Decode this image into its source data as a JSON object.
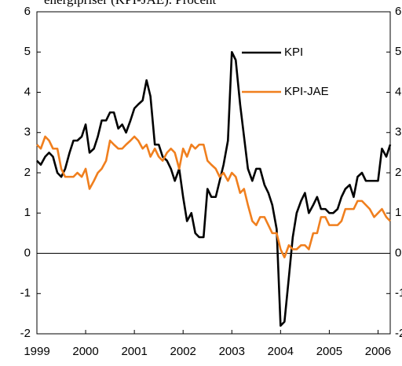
{
  "chart_data": {
    "type": "line",
    "title": "energipriser (KPI-JAE). Procent",
    "x": [
      1999.0,
      1999.08,
      1999.17,
      1999.25,
      1999.33,
      1999.42,
      1999.5,
      1999.58,
      1999.67,
      1999.75,
      1999.83,
      1999.92,
      2000.0,
      2000.08,
      2000.17,
      2000.25,
      2000.33,
      2000.42,
      2000.5,
      2000.58,
      2000.67,
      2000.75,
      2000.83,
      2000.92,
      2001.0,
      2001.08,
      2001.17,
      2001.25,
      2001.33,
      2001.42,
      2001.5,
      2001.58,
      2001.67,
      2001.75,
      2001.83,
      2001.92,
      2002.0,
      2002.08,
      2002.17,
      2002.25,
      2002.33,
      2002.42,
      2002.5,
      2002.58,
      2002.67,
      2002.75,
      2002.83,
      2002.92,
      2003.0,
      2003.08,
      2003.17,
      2003.25,
      2003.33,
      2003.42,
      2003.5,
      2003.58,
      2003.67,
      2003.75,
      2003.83,
      2003.92,
      2004.0,
      2004.08,
      2004.17,
      2004.25,
      2004.33,
      2004.42,
      2004.5,
      2004.58,
      2004.67,
      2004.75,
      2004.83,
      2004.92,
      2005.0,
      2005.08,
      2005.17,
      2005.25,
      2005.33,
      2005.42,
      2005.5,
      2005.58,
      2005.67,
      2005.75,
      2005.83,
      2005.92,
      2006.0,
      2006.08,
      2006.17,
      2006.25
    ],
    "series": [
      {
        "name": "KPI",
        "color": "#000000",
        "values": [
          2.3,
          2.2,
          2.4,
          2.5,
          2.4,
          2.0,
          1.9,
          2.1,
          2.5,
          2.8,
          2.8,
          2.9,
          3.2,
          2.5,
          2.6,
          2.9,
          3.3,
          3.3,
          3.5,
          3.5,
          3.1,
          3.2,
          3.0,
          3.3,
          3.6,
          3.7,
          3.8,
          4.3,
          3.9,
          2.7,
          2.7,
          2.4,
          2.3,
          2.1,
          1.8,
          2.1,
          1.4,
          0.8,
          1.0,
          0.5,
          0.4,
          0.4,
          1.6,
          1.4,
          1.4,
          1.8,
          2.2,
          2.8,
          5.0,
          4.8,
          3.7,
          2.9,
          2.1,
          1.8,
          2.1,
          2.1,
          1.7,
          1.5,
          1.2,
          0.6,
          -1.8,
          -1.7,
          -0.6,
          0.4,
          1.0,
          1.3,
          1.5,
          1.0,
          1.2,
          1.4,
          1.1,
          1.1,
          1.0,
          1.0,
          1.1,
          1.4,
          1.6,
          1.7,
          1.4,
          1.9,
          2.0,
          1.8,
          1.8,
          1.8,
          1.8,
          2.6,
          2.4,
          2.7
        ]
      },
      {
        "name": "KPI-JAE",
        "color": "#f07f1e",
        "values": [
          2.7,
          2.6,
          2.9,
          2.8,
          2.6,
          2.6,
          2.1,
          1.9,
          1.9,
          1.9,
          2.0,
          1.9,
          2.1,
          1.6,
          1.8,
          2.0,
          2.1,
          2.3,
          2.8,
          2.7,
          2.6,
          2.6,
          2.7,
          2.8,
          2.9,
          2.8,
          2.6,
          2.7,
          2.4,
          2.6,
          2.4,
          2.3,
          2.5,
          2.6,
          2.5,
          2.1,
          2.6,
          2.4,
          2.7,
          2.6,
          2.7,
          2.7,
          2.3,
          2.2,
          2.1,
          1.9,
          2.0,
          1.8,
          2.0,
          1.9,
          1.5,
          1.6,
          1.2,
          0.8,
          0.7,
          0.9,
          0.9,
          0.7,
          0.5,
          0.5,
          0.1,
          -0.1,
          0.2,
          0.1,
          0.1,
          0.2,
          0.2,
          0.1,
          0.5,
          0.5,
          0.9,
          0.9,
          0.7,
          0.7,
          0.7,
          0.8,
          1.1,
          1.1,
          1.1,
          1.3,
          1.3,
          1.2,
          1.1,
          0.9,
          1.0,
          1.1,
          0.9,
          0.8
        ]
      }
    ],
    "xlim": [
      1999,
      2006.25
    ],
    "xticks": [
      1999,
      2000,
      2001,
      2002,
      2003,
      2004,
      2005,
      2006
    ],
    "ylim": [
      -2,
      6
    ],
    "yticks": [
      -2,
      -1,
      0,
      1,
      2,
      3,
      4,
      5,
      6
    ],
    "y2lim": [
      -2,
      6
    ],
    "y2ticks": [
      -2,
      -1,
      0,
      1,
      2,
      3,
      4,
      5,
      6
    ],
    "legend": "upper right"
  }
}
